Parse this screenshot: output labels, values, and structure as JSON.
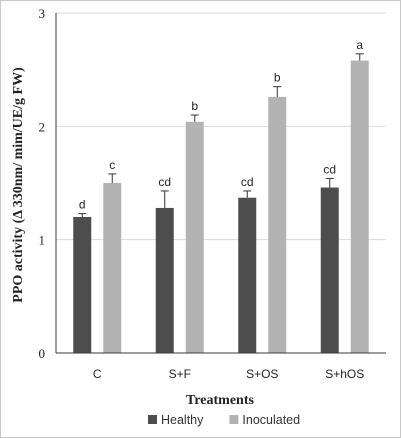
{
  "chart_data": {
    "type": "bar",
    "title": "",
    "xlabel": "Treatments",
    "ylabel": "PPO activity (Δ 330nm/ mim/UE/g FW)",
    "ylim": [
      0,
      3
    ],
    "yticks": [
      "0",
      "1",
      "2",
      "3"
    ],
    "categories": [
      "C",
      "S+F",
      "S+OS",
      "S+hOS"
    ],
    "grid": true,
    "legend_position": "bottom",
    "series": [
      {
        "name": "Healthy",
        "color": "#4d4d4d",
        "values": [
          1.2,
          1.28,
          1.37,
          1.46
        ],
        "errors": [
          0.03,
          0.15,
          0.06,
          0.08
        ],
        "labels": [
          "d",
          "cd",
          "cd",
          "cd"
        ]
      },
      {
        "name": "Inoculated",
        "color": "#b3b3b3",
        "values": [
          1.5,
          2.04,
          2.26,
          2.58
        ],
        "errors": [
          0.08,
          0.06,
          0.09,
          0.06
        ],
        "labels": [
          "c",
          "b",
          "b",
          "a"
        ]
      }
    ]
  }
}
